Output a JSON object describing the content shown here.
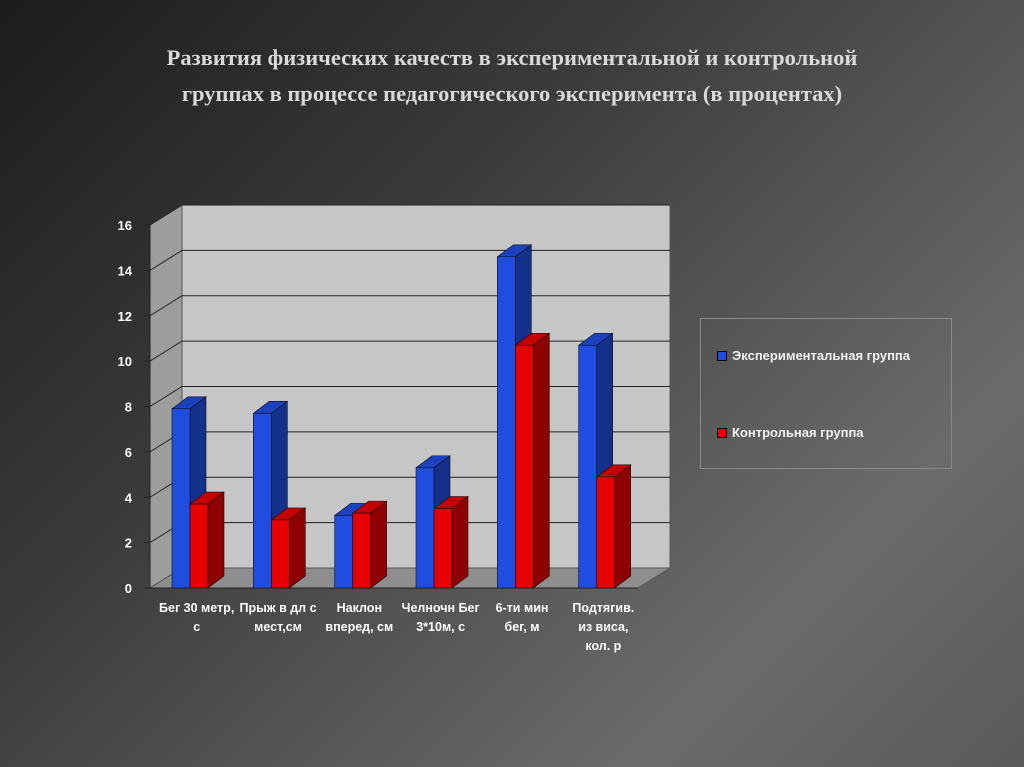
{
  "slide": {
    "title_line1": "Развития физических качеств в экспериментальной и контрольной",
    "title_line2": "группах в процессе педагогического эксперимента (в процентах)"
  },
  "legend": {
    "experimental": "Экспериментальная группа",
    "control": "Контрольная группа"
  },
  "colors": {
    "experimental": "#1f4de0",
    "control": "#e60000",
    "plot_wall": "#c6c6c6"
  },
  "chart_data": {
    "type": "bar",
    "title": "",
    "xlabel": "",
    "ylabel": "",
    "ylim": [
      0,
      16
    ],
    "yticks": [
      0,
      2,
      4,
      6,
      8,
      10,
      12,
      14,
      16
    ],
    "grid": true,
    "legend_position": "right",
    "categories": [
      [
        "Бег 30 метр,",
        "с"
      ],
      [
        "Прыж в дл с",
        "мест,см"
      ],
      [
        "Наклон",
        "вперед, см"
      ],
      [
        "Челночн Бег",
        "3*10м, с"
      ],
      [
        "6-ти мин",
        "бег, м"
      ],
      [
        "Подтягив.",
        "из виса,",
        "кол. р"
      ]
    ],
    "series": [
      {
        "name": "Экспериментальная группа",
        "values": [
          7.9,
          7.7,
          3.2,
          5.3,
          14.6,
          10.7
        ]
      },
      {
        "name": "Контрольная группа",
        "values": [
          3.7,
          3.0,
          3.3,
          3.5,
          10.7,
          4.9
        ]
      }
    ]
  }
}
